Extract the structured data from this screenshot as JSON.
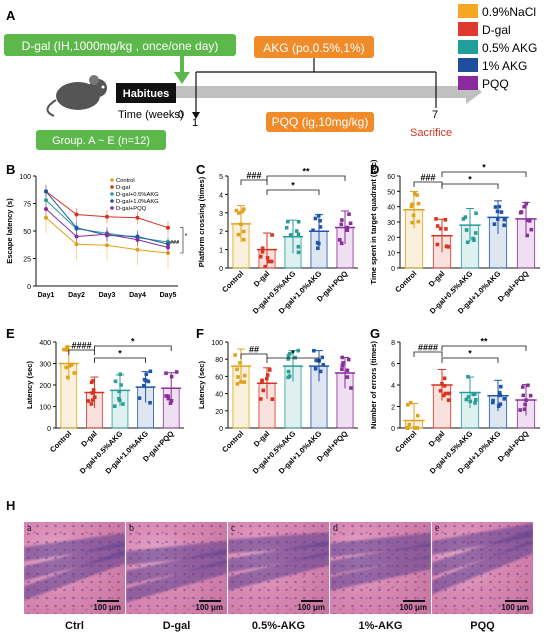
{
  "panel_labels": {
    "A": "A",
    "B": "B",
    "C": "C",
    "D": "D",
    "E": "E",
    "F": "F",
    "G": "G",
    "H": "H"
  },
  "schematic": {
    "dgal_box": "D-gal (IH,1000mg/kg , once/one day)",
    "akg_box": "AKG (po,0.5%,1%)",
    "pqq_box": "PQQ (ig,10mg/kg)",
    "habitues": "Habitues",
    "time_label": "Time (weeks)",
    "t0": "0",
    "t1": "1",
    "t7": "7",
    "sacrifice": "Sacrifice",
    "group_box": "Group. A ~ E (n=12)"
  },
  "legend_top": [
    {
      "label": "0.9%NaCl",
      "color": "#f5a623"
    },
    {
      "label": "D-gal",
      "color": "#e03a2f"
    },
    {
      "label": "0.5% AKG",
      "color": "#1f9e9b"
    },
    {
      "label": "1% AKG",
      "color": "#1f4e9c"
    },
    {
      "label": "PQQ",
      "color": "#8b2a9c"
    }
  ],
  "colors": {
    "control": "#e0a21a",
    "dgal": "#d9331f",
    "akg05": "#2a9c97",
    "akg1": "#1f55a8",
    "pqq": "#8a2c9b"
  },
  "categories": [
    "Control",
    "D-gal",
    "D-gal+0.5%AKG",
    "D-gal+1.0%AKG",
    "D-gal+PQQ"
  ],
  "histology": [
    "Ctrl",
    "D-gal",
    "0.5%-AKG",
    "1%-AKG",
    "PQQ"
  ],
  "histology_tags": [
    "a",
    "b",
    "c",
    "d",
    "e"
  ],
  "scale_label": "100 μm",
  "chart_data": [
    {
      "id": "B",
      "type": "line",
      "xlabel": "",
      "ylabel": "Escape latency (s)",
      "categories": [
        "Day1",
        "Day2",
        "Day3",
        "Day4",
        "Day5"
      ],
      "ylim": [
        0,
        100
      ],
      "yticks": [
        0,
        25,
        50,
        75,
        100
      ],
      "series": [
        {
          "name": "Control",
          "values": [
            62,
            38,
            37,
            33,
            30
          ]
        },
        {
          "name": "D-gal",
          "values": [
            86,
            65,
            63,
            62,
            53
          ]
        },
        {
          "name": "D-gal+0.5%AKG",
          "values": [
            78,
            52,
            48,
            44,
            40
          ]
        },
        {
          "name": "D-gal+1.0%AKG",
          "values": [
            86,
            53,
            46,
            45,
            38
          ]
        },
        {
          "name": "D-gal+PQQ",
          "values": [
            70,
            45,
            47,
            42,
            35
          ]
        }
      ],
      "annotations": [
        "*",
        "###"
      ]
    },
    {
      "id": "C",
      "type": "bar",
      "ylabel": "Platform crossing (times)",
      "ylim": [
        0,
        5
      ],
      "yticks": [
        0,
        1,
        2,
        3,
        4,
        5
      ],
      "values": [
        2.4,
        1.0,
        1.7,
        2.0,
        2.2
      ],
      "annotations": [
        "###",
        "*",
        "**"
      ]
    },
    {
      "id": "D",
      "type": "bar",
      "ylabel": "Time spent in target quadrant (sec)",
      "ylim": [
        0,
        60
      ],
      "yticks": [
        0,
        10,
        20,
        30,
        40,
        50,
        60
      ],
      "values": [
        38,
        21,
        28,
        33,
        32
      ],
      "annotations": [
        "###",
        "*",
        "*"
      ]
    },
    {
      "id": "E",
      "type": "bar",
      "ylabel": "Latency (sec)",
      "ylim": [
        0,
        400
      ],
      "yticks": [
        0,
        100,
        200,
        300,
        400
      ],
      "values": [
        300,
        165,
        175,
        190,
        185
      ],
      "annotations": [
        "####",
        "*",
        "*"
      ]
    },
    {
      "id": "F",
      "type": "bar",
      "ylabel": "Latency (sec)",
      "ylim": [
        0,
        100
      ],
      "yticks": [
        0,
        20,
        40,
        60,
        80,
        100
      ],
      "values": [
        72,
        52,
        72,
        72,
        64
      ],
      "annotations": [
        "##",
        "*"
      ]
    },
    {
      "id": "G",
      "type": "bar",
      "ylabel": "Number of errors (times)",
      "ylim": [
        0,
        8
      ],
      "yticks": [
        0,
        2,
        4,
        6,
        8
      ],
      "values": [
        0.7,
        4.0,
        3.3,
        3.0,
        2.6
      ],
      "annotations": [
        "####",
        "*",
        "**"
      ]
    }
  ]
}
